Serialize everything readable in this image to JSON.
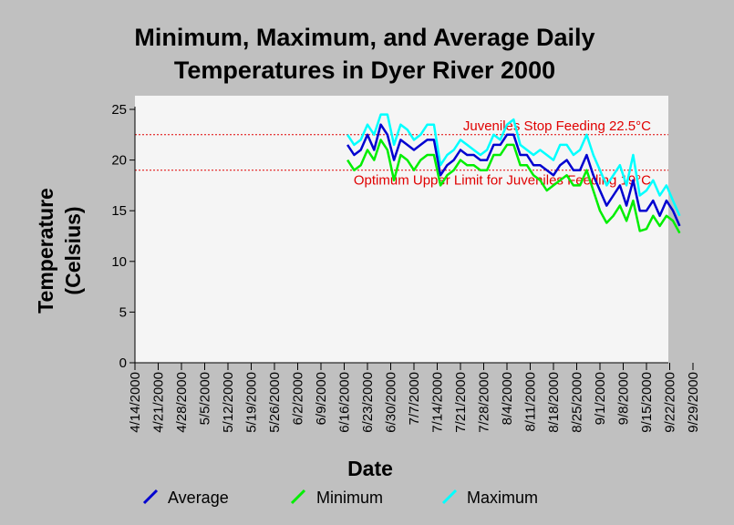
{
  "chart_data": {
    "type": "line",
    "title_lines": [
      "Minimum, Maximum, and Average Daily",
      "Temperatures in Dyer River 2000"
    ],
    "xlabel": "Date",
    "ylabel_lines": [
      "Temperature",
      "(Celsius)"
    ],
    "ylim": [
      0,
      25
    ],
    "yticks": [
      "0",
      "5",
      "10",
      "15",
      "20",
      "25"
    ],
    "x_tick_labels": [
      "4/14/2000",
      "4/21/2000",
      "4/28/2000",
      "5/5/2000",
      "5/12/2000",
      "5/19/2000",
      "5/26/2000",
      "6/2/2000",
      "6/9/2000",
      "6/16/2000",
      "6/23/2000",
      "6/30/2000",
      "7/7/2000",
      "7/14/2000",
      "7/21/2000",
      "7/28/2000",
      "8/4/2000",
      "8/11/2000",
      "8/18/2000",
      "8/25/2000",
      "9/1/2000",
      "9/8/2000",
      "9/15/2000",
      "9/22/2000",
      "9/29/2000"
    ],
    "x_days_range": [
      0,
      168
    ],
    "grid": false,
    "legend_position": "bottom",
    "reference_lines": [
      {
        "label": "Juveniles Stop Feeding 22.5°C",
        "value": 22.5,
        "color": "#e00000"
      },
      {
        "label": "Optimum Upper Limit for Juveniles Feeding 19°C",
        "value": 19,
        "color": "#e00000"
      }
    ],
    "series": [
      {
        "name": "Maximum",
        "color": "#00ffff",
        "x": [
          64,
          66,
          68,
          70,
          72,
          74,
          76,
          78,
          80,
          82,
          84,
          86,
          88,
          90,
          92,
          94,
          96,
          98,
          100,
          102,
          104,
          106,
          108,
          110,
          112,
          114,
          116,
          118,
          120,
          122,
          124,
          126,
          128,
          130,
          132,
          134,
          136,
          138,
          140,
          142,
          144,
          146,
          148,
          150,
          152,
          154,
          156,
          158,
          160,
          162,
          164
        ],
        "values": [
          22.5,
          21.5,
          22,
          23.5,
          22.5,
          24.5,
          24.5,
          21.5,
          23.5,
          23,
          22,
          22.5,
          23.5,
          23.5,
          19.5,
          20.5,
          21,
          22,
          21.5,
          21,
          20.5,
          21,
          22.5,
          22,
          23.5,
          24,
          21.5,
          21,
          20.5,
          21,
          20.5,
          20,
          21.5,
          21.5,
          20.5,
          21,
          22.5,
          20.5,
          19,
          17.5,
          18.5,
          19.5,
          17.5,
          20.5,
          16.5,
          17,
          18,
          16.5,
          17.5,
          16,
          14.5
        ]
      },
      {
        "name": "Average",
        "color": "#0000d0",
        "x": [
          64,
          66,
          68,
          70,
          72,
          74,
          76,
          78,
          80,
          82,
          84,
          86,
          88,
          90,
          92,
          94,
          96,
          98,
          100,
          102,
          104,
          106,
          108,
          110,
          112,
          114,
          116,
          118,
          120,
          122,
          124,
          126,
          128,
          130,
          132,
          134,
          136,
          138,
          140,
          142,
          144,
          146,
          148,
          150,
          152,
          154,
          156,
          158,
          160,
          162,
          164
        ],
        "values": [
          21.5,
          20.5,
          21,
          22.5,
          21,
          23.5,
          22.5,
          20,
          22,
          21.5,
          21,
          21.5,
          22,
          22,
          18.5,
          19.5,
          20,
          21,
          20.5,
          20.5,
          20,
          20,
          21.5,
          21.5,
          22.5,
          22.5,
          20.5,
          20.5,
          19.5,
          19.5,
          19,
          18.5,
          19.5,
          20,
          19,
          19,
          20.5,
          18.5,
          17,
          15.5,
          16.5,
          17.5,
          15.5,
          18,
          15,
          15,
          16,
          14.5,
          16,
          15,
          13.5
        ]
      },
      {
        "name": "Minimum",
        "color": "#00ee00",
        "x": [
          64,
          66,
          68,
          70,
          72,
          74,
          76,
          78,
          80,
          82,
          84,
          86,
          88,
          90,
          92,
          94,
          96,
          98,
          100,
          102,
          104,
          106,
          108,
          110,
          112,
          114,
          116,
          118,
          120,
          122,
          124,
          126,
          128,
          130,
          132,
          134,
          136,
          138,
          140,
          142,
          144,
          146,
          148,
          150,
          152,
          154,
          156,
          158,
          160,
          162,
          164
        ],
        "values": [
          20,
          19,
          19.5,
          21,
          20,
          22,
          21,
          18,
          20.5,
          20,
          19,
          20,
          20.5,
          20.5,
          17.5,
          18.5,
          19,
          20,
          19.5,
          19.5,
          19,
          19,
          20.5,
          20.5,
          21.5,
          21.5,
          19.5,
          19.5,
          18.5,
          18,
          17,
          17.5,
          18,
          18.5,
          17.5,
          17.5,
          19,
          17,
          15,
          13.8,
          14.5,
          15.5,
          14,
          16,
          13,
          13.2,
          14.5,
          13.5,
          14.5,
          14,
          12.8
        ]
      }
    ]
  },
  "legend": {
    "items": [
      {
        "label": "Average",
        "color": "#0000d0"
      },
      {
        "label": "Minimum",
        "color": "#00ee00"
      },
      {
        "label": "Maximum",
        "color": "#00ffff"
      }
    ]
  }
}
